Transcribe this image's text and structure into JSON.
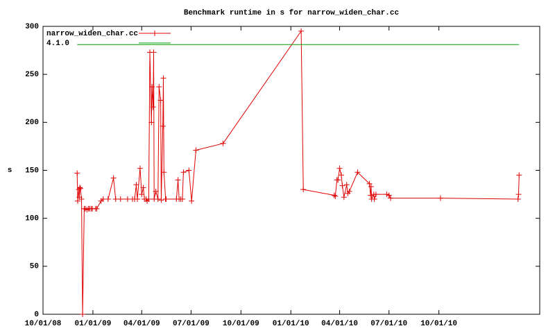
{
  "chart_data": {
    "type": "line",
    "title": "Benchmark runtime in s for narrow_widen_char.cc",
    "ylabel": "s",
    "x": [
      "2008-12-03",
      "2008-12-04",
      "2008-12-06",
      "2008-12-07",
      "2008-12-08",
      "2008-12-09",
      "2008-12-11",
      "2008-12-13",
      "2008-12-16",
      "2008-12-18",
      "2008-12-21",
      "2008-12-24",
      "2008-12-26",
      "2008-12-29",
      "2008-12-31",
      "2009-01-06",
      "2009-01-08",
      "2009-01-16",
      "2009-01-20",
      "2009-01-29",
      "2009-02-08",
      "2009-02-12",
      "2009-02-21",
      "2009-03-06",
      "2009-03-15",
      "2009-03-19",
      "2009-03-22",
      "2009-03-24",
      "2009-03-29",
      "2009-04-01",
      "2009-04-04",
      "2009-04-06",
      "2009-04-09",
      "2009-04-11",
      "2009-04-14",
      "2009-04-16",
      "2009-04-19",
      "2009-04-20",
      "2009-04-22",
      "2009-04-23",
      "2009-04-24",
      "2009-04-27",
      "2009-05-01",
      "2009-05-03",
      "2009-05-06",
      "2009-05-07",
      "2009-05-10",
      "2009-05-11",
      "2009-05-12",
      "2009-05-15",
      "2009-05-16",
      "2009-06-04",
      "2009-06-07",
      "2009-06-09",
      "2009-06-12",
      "2009-06-15",
      "2009-06-17",
      "2009-06-27",
      "2009-07-02",
      "2009-07-10",
      "2009-08-29",
      "2010-01-20",
      "2010-01-24",
      "2010-03-22",
      "2010-03-24",
      "2010-03-27",
      "2010-03-29",
      "2010-04-01",
      "2010-04-04",
      "2010-04-06",
      "2010-04-09",
      "2010-04-14",
      "2010-04-16",
      "2010-04-19",
      "2010-05-04",
      "2010-05-26",
      "2010-05-28",
      "2010-05-29",
      "2010-05-30",
      "2010-06-03",
      "2010-06-04",
      "2010-06-07",
      "2010-06-27",
      "2010-07-01",
      "2010-07-04",
      "2010-10-04",
      "2011-02-24",
      "2011-02-25",
      "2011-02-26"
    ],
    "xlim": [
      "2008-10-01",
      "2011-04-05"
    ],
    "xticks": [
      {
        "value": "2008-10-01",
        "label": "10/01/08"
      },
      {
        "value": "2009-01-01",
        "label": "01/01/09"
      },
      {
        "value": "2009-04-01",
        "label": "04/01/09"
      },
      {
        "value": "2009-07-01",
        "label": "07/01/09"
      },
      {
        "value": "2009-10-01",
        "label": "10/01/09"
      },
      {
        "value": "2010-01-01",
        "label": "01/01/10"
      },
      {
        "value": "2010-04-01",
        "label": "04/01/10"
      },
      {
        "value": "2010-07-01",
        "label": "07/01/10"
      },
      {
        "value": "2010-10-01",
        "label": "10/01/10"
      }
    ],
    "ylim": [
      0,
      300
    ],
    "yticks": [
      0,
      50,
      100,
      150,
      200,
      250,
      300
    ],
    "legend": "top-left",
    "series": [
      {
        "name": "narrow_widen_char.cc",
        "color": "#e00000",
        "marker": "+",
        "values": [
          147,
          118,
          130,
          122,
          132,
          131,
          120,
          0,
          110,
          110,
          109,
          110,
          110,
          110,
          110,
          110,
          110,
          118,
          120,
          120,
          142,
          120,
          120,
          120,
          120,
          120,
          135,
          120,
          152,
          125,
          132,
          120,
          120,
          118,
          120,
          273,
          200,
          237,
          216,
          273,
          120,
          128,
          120,
          237,
          223,
          119,
          196,
          246,
          148,
          120,
          120,
          120,
          140,
          120,
          120,
          120,
          148,
          150,
          118,
          171,
          178,
          295,
          130,
          124,
          123,
          140,
          140,
          152,
          145,
          134,
          122,
          135,
          126,
          128,
          148,
          136,
          124,
          133,
          120,
          125,
          120,
          125,
          125,
          124,
          121,
          121,
          120,
          125,
          145
        ]
      },
      {
        "name": "4.1.0",
        "color": "#00a000",
        "x": [
          "2008-12-03",
          "2011-02-26"
        ],
        "values": [
          281,
          281
        ]
      }
    ]
  }
}
